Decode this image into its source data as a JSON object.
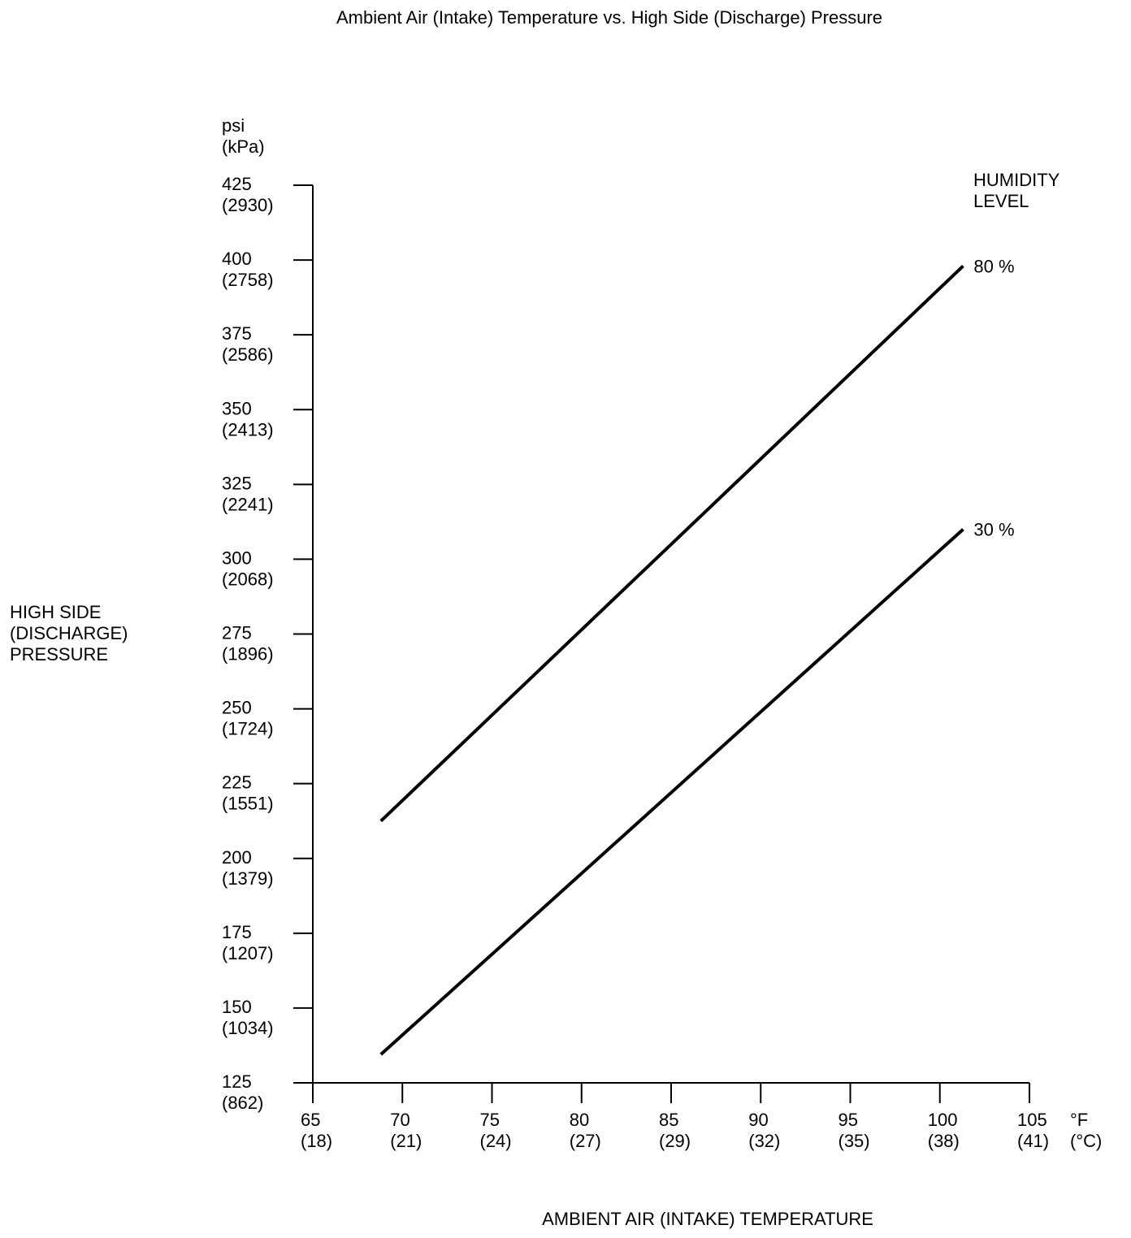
{
  "chart_data": {
    "type": "line",
    "title": "Ambient Air (Intake) Temperature vs. High Side (Discharge) Pressure",
    "xlabel": "AMBIENT AIR (INTAKE) TEMPERATURE",
    "ylabel": [
      "HIGH SIDE",
      "(DISCHARGE)",
      "PRESSURE"
    ],
    "y_units": [
      "psi",
      "(kPa)"
    ],
    "x_units": [
      "°F",
      "(°C)"
    ],
    "legend_title": [
      "HUMIDITY",
      "LEVEL"
    ],
    "xlim": [
      65,
      105
    ],
    "ylim": [
      125,
      425
    ],
    "x_ticks": [
      {
        "f": "65",
        "c": "(18)"
      },
      {
        "f": "70",
        "c": "(21)"
      },
      {
        "f": "75",
        "c": "(24)"
      },
      {
        "f": "80",
        "c": "(27)"
      },
      {
        "f": "85",
        "c": "(29)"
      },
      {
        "f": "90",
        "c": "(32)"
      },
      {
        "f": "95",
        "c": "(35)"
      },
      {
        "f": "100",
        "c": "(38)"
      },
      {
        "f": "105",
        "c": "(41)"
      }
    ],
    "y_ticks": [
      {
        "psi": "425",
        "kpa": "(2930)"
      },
      {
        "psi": "400",
        "kpa": "(2758)"
      },
      {
        "psi": "375",
        "kpa": "(2586)"
      },
      {
        "psi": "350",
        "kpa": "(2413)"
      },
      {
        "psi": "325",
        "kpa": "(2241)"
      },
      {
        "psi": "300",
        "kpa": "(2068)"
      },
      {
        "psi": "275",
        "kpa": "(1896)"
      },
      {
        "psi": "250",
        "kpa": "(1724)"
      },
      {
        "psi": "225",
        "kpa": "(1551)"
      },
      {
        "psi": "200",
        "kpa": "(1379)"
      },
      {
        "psi": "175",
        "kpa": "(1207)"
      },
      {
        "psi": "150",
        "kpa": "(1034)"
      },
      {
        "psi": "125",
        "kpa": "(862)"
      }
    ],
    "series": [
      {
        "name": "80 %",
        "x": [
          68.8,
          101.3
        ],
        "y": [
          212.5,
          398
        ]
      },
      {
        "name": "30 %",
        "x": [
          68.8,
          101.3
        ],
        "y": [
          134.5,
          310
        ]
      }
    ]
  }
}
